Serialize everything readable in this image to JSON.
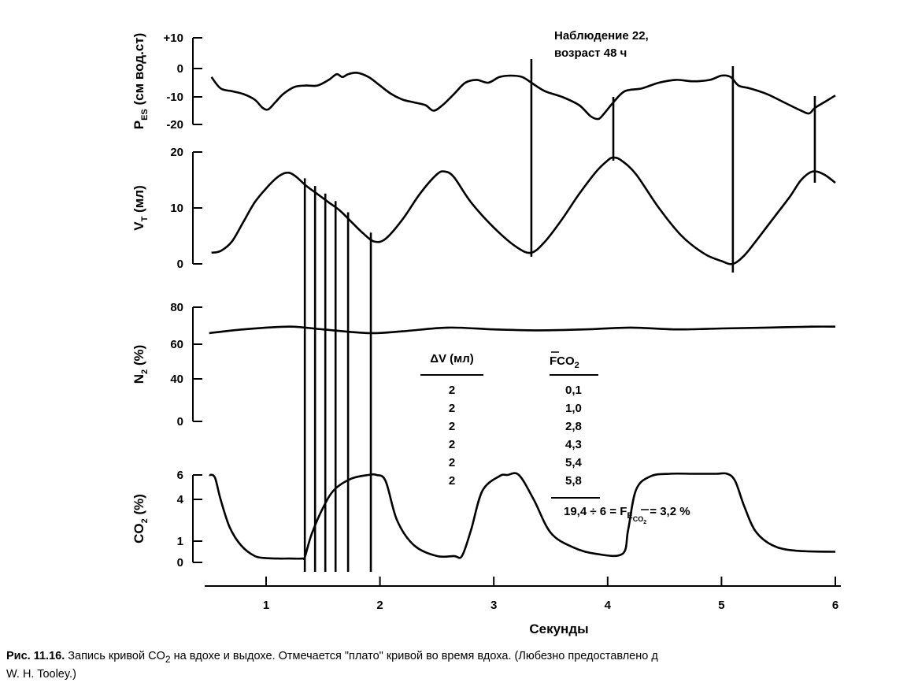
{
  "chart_data": {
    "type": "line",
    "annotation": [
      "Наблюдение 22,",
      "возраст 48 ч"
    ],
    "xlabel": "Секунды",
    "x_ticks": [
      "1",
      "2",
      "3",
      "4",
      "5",
      "6"
    ],
    "xlim": [
      0.5,
      6
    ],
    "panels": [
      {
        "id": "pes",
        "ylabel": "PES (см вод.ст)",
        "ylabel_main": "P",
        "ylabel_sub": "ES",
        "ylabel_rest": " (см вод.ст)",
        "y_ticks": [
          "+10",
          "0",
          "-10",
          "-20"
        ],
        "y_tick_values": [
          10,
          0,
          -10,
          -20
        ],
        "ylim": [
          -20,
          10
        ],
        "x": [
          0.52,
          0.6,
          0.7,
          0.8,
          0.9,
          0.97,
          1.02,
          1.08,
          1.15,
          1.25,
          1.35,
          1.45,
          1.55,
          1.62,
          1.67,
          1.72,
          1.8,
          1.9,
          2.0,
          2.1,
          2.2,
          2.3,
          2.4,
          2.47,
          2.55,
          2.65,
          2.75,
          2.85,
          2.95,
          3.05,
          3.15,
          3.25,
          3.33,
          3.45,
          3.6,
          3.75,
          3.85,
          3.92,
          3.97,
          4.05,
          4.15,
          4.3,
          4.45,
          4.6,
          4.75,
          4.9,
          5.0,
          5.08,
          5.15,
          5.25,
          5.4,
          5.55,
          5.7,
          5.77,
          5.82,
          5.9,
          6.0
        ],
        "y": [
          -3,
          -7,
          -8,
          -9,
          -11,
          -14,
          -14.5,
          -12,
          -9,
          -6.5,
          -6,
          -6,
          -4,
          -2,
          -3,
          -2,
          -1.5,
          -3,
          -6,
          -9,
          -11,
          -12,
          -13,
          -15,
          -13,
          -9,
          -5,
          -4,
          -5,
          -3,
          -2.5,
          -3,
          -5,
          -8,
          -10,
          -13,
          -17,
          -18,
          -16,
          -12,
          -8,
          -7,
          -5,
          -4,
          -4.5,
          -4,
          -2.5,
          -3,
          -6,
          -7,
          -9,
          -12,
          -15,
          -16,
          -14,
          -12,
          -9.5
        ]
      },
      {
        "id": "vt",
        "ylabel": "VT (мл)",
        "ylabel_main": "V",
        "ylabel_sub": "T",
        "ylabel_rest": " (мл)",
        "y_ticks": [
          "20",
          "10",
          "0"
        ],
        "y_tick_values": [
          20,
          10,
          0
        ],
        "ylim": [
          0,
          20
        ],
        "x": [
          0.52,
          0.6,
          0.7,
          0.8,
          0.9,
          1.0,
          1.1,
          1.18,
          1.25,
          1.35,
          1.45,
          1.55,
          1.65,
          1.75,
          1.85,
          1.95,
          2.05,
          2.2,
          2.35,
          2.5,
          2.57,
          2.65,
          2.8,
          3.0,
          3.2,
          3.33,
          3.45,
          3.6,
          3.75,
          3.9,
          4.0,
          4.05,
          4.12,
          4.25,
          4.45,
          4.65,
          4.85,
          5.0,
          5.1,
          5.2,
          5.3,
          5.45,
          5.6,
          5.7,
          5.8,
          5.9,
          6.0
        ],
        "y": [
          2,
          2.3,
          4,
          7.5,
          11,
          13.5,
          15.5,
          16.3,
          15.8,
          14,
          12.5,
          11,
          9.5,
          7.5,
          5.5,
          4,
          4.5,
          8,
          12.5,
          16,
          16.5,
          15.5,
          11,
          6.5,
          3,
          2,
          4,
          8,
          12.5,
          16.5,
          18.5,
          19,
          18.5,
          16,
          10,
          5,
          1.8,
          0.5,
          0,
          1.5,
          4,
          8,
          12,
          15,
          16.5,
          16,
          14.5
        ]
      },
      {
        "id": "n2",
        "ylabel": "N2 (%)",
        "ylabel_main": "N",
        "ylabel_sub": "2",
        "ylabel_rest": " (%)",
        "y_ticks": [
          "80",
          "60",
          "40",
          "0"
        ],
        "y_tick_values": [
          80,
          60,
          40,
          0
        ],
        "ylim": [
          0,
          80
        ],
        "x": [
          0.5,
          0.8,
          1.2,
          1.5,
          1.9,
          2.2,
          2.6,
          3.0,
          3.4,
          3.8,
          4.2,
          4.6,
          5.0,
          5.4,
          5.8,
          6.0
        ],
        "y": [
          66,
          68,
          69.5,
          68,
          66,
          67,
          69,
          68,
          67.5,
          68,
          69,
          68,
          68.5,
          69,
          69.5,
          69.5
        ]
      },
      {
        "id": "co2",
        "ylabel": "CO2 (%)",
        "ylabel_main": "CO",
        "ylabel_sub": "2",
        "ylabel_rest": " (%)",
        "y_ticks": [
          "6",
          "4",
          "1",
          "0"
        ],
        "y_tick_values": [
          6,
          4,
          1,
          0
        ],
        "ylim": [
          0,
          6
        ],
        "x": [
          0.5,
          0.55,
          0.6,
          0.68,
          0.78,
          0.9,
          1.0,
          1.1,
          1.2,
          1.32,
          1.34,
          1.4,
          1.5,
          1.6,
          1.75,
          1.9,
          1.97,
          2.05,
          2.15,
          2.3,
          2.5,
          2.65,
          2.72,
          2.8,
          2.9,
          3.05,
          3.12,
          3.22,
          3.35,
          3.5,
          3.7,
          3.9,
          4.13,
          4.18,
          4.25,
          4.38,
          4.55,
          4.75,
          4.95,
          5.05,
          5.12,
          5.2,
          5.3,
          5.45,
          5.65,
          6.0
        ],
        "y": [
          6,
          5.8,
          4,
          2,
          0.8,
          0.3,
          0.2,
          0.18,
          0.18,
          0.18,
          0.25,
          1.5,
          3.4,
          4.8,
          5.7,
          6.0,
          6.0,
          5.5,
          2.5,
          0.8,
          0.3,
          0.3,
          0.3,
          1.8,
          4.7,
          5.9,
          6.0,
          6.0,
          4,
          1.6,
          0.7,
          0.4,
          0.4,
          1.8,
          4.8,
          5.9,
          6.1,
          6.1,
          6.1,
          6.1,
          5.5,
          3.5,
          1.7,
          0.8,
          0.55,
          0.5
        ]
      }
    ],
    "vertical_lines": {
      "full_height": [
        {
          "x": 3.33,
          "from": "pes",
          "to": "vt"
        },
        {
          "x": 5.1,
          "from": "pes",
          "to": "vt"
        },
        {
          "x": 4.05,
          "from": "pes",
          "to": "vt"
        },
        {
          "x": 5.82,
          "from": "pes",
          "to": "vt"
        }
      ],
      "sampling": [
        1.34,
        1.43,
        1.52,
        1.61,
        1.72,
        1.92
      ]
    },
    "table": {
      "header_dv": "ΔV (мл)",
      "header_fco2_main": "FCO",
      "header_fco2_sub": "2",
      "rows": [
        {
          "dv": "2",
          "fco2": "0,1"
        },
        {
          "dv": "2",
          "fco2": "1,0"
        },
        {
          "dv": "2",
          "fco2": "2,8"
        },
        {
          "dv": "2",
          "fco2": "4,3"
        },
        {
          "dv": "2",
          "fco2": "5,4"
        },
        {
          "dv": "2",
          "fco2": "5,8"
        }
      ],
      "sum_prefix": "19,4 ÷ 6 = F",
      "sum_sub": "E",
      "sum_subsub": "CO",
      "sum_subsub2": "2",
      "sum_result": " = 3,2 %"
    }
  },
  "caption": {
    "label": "Рис. 11.16.",
    "text": " Запись кривой CO",
    "sub": "2",
    "text2": " на вдохе и выдохе. Отмечается \"плато\" кривой во время вдоха. (Любезно предоставлено д",
    "line2": "W. H. Tooley.)"
  }
}
